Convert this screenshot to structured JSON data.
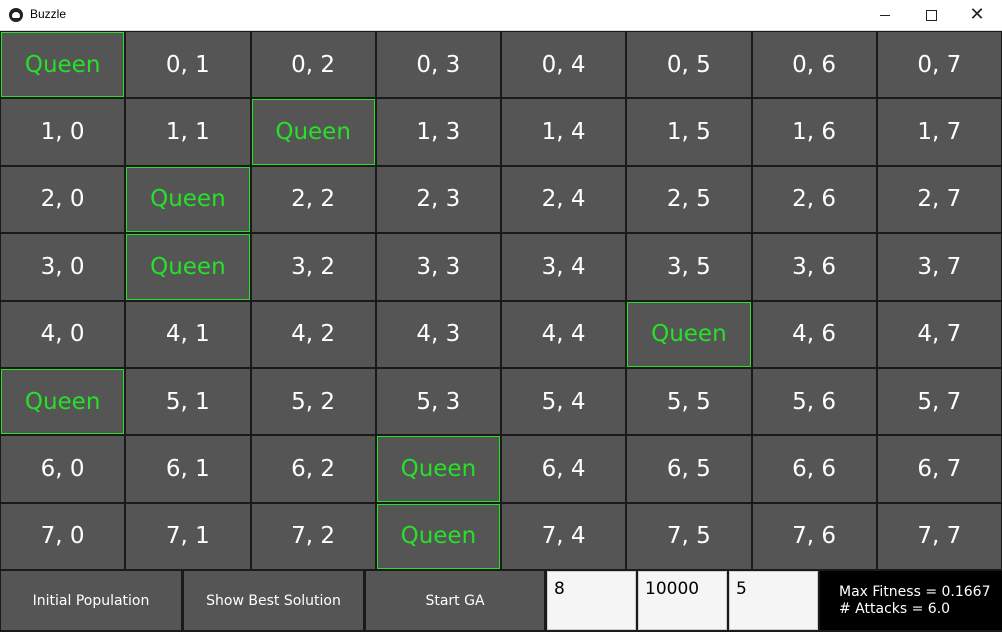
{
  "window": {
    "title": "Buzzle",
    "minimize_symbol": "",
    "close_symbol": "✕"
  },
  "board": {
    "queen_color": "#27e028",
    "cell_color": "#555555",
    "rows": [
      [
        "Queen",
        "0, 1",
        "0, 2",
        "0, 3",
        "0, 4",
        "0, 5",
        "0, 6",
        "0, 7"
      ],
      [
        "1, 0",
        "1, 1",
        "Queen",
        "1, 3",
        "1, 4",
        "1, 5",
        "1, 6",
        "1, 7"
      ],
      [
        "2, 0",
        "Queen",
        "2, 2",
        "2, 3",
        "2, 4",
        "2, 5",
        "2, 6",
        "2, 7"
      ],
      [
        "3, 0",
        "Queen",
        "3, 2",
        "3, 3",
        "3, 4",
        "3, 5",
        "3, 6",
        "3, 7"
      ],
      [
        "4, 0",
        "4, 1",
        "4, 2",
        "4, 3",
        "4, 4",
        "Queen",
        "4, 6",
        "4, 7"
      ],
      [
        "Queen",
        "5, 1",
        "5, 2",
        "5, 3",
        "5, 4",
        "5, 5",
        "5, 6",
        "5, 7"
      ],
      [
        "6, 0",
        "6, 1",
        "6, 2",
        "Queen",
        "6, 4",
        "6, 5",
        "6, 6",
        "6, 7"
      ],
      [
        "7, 0",
        "7, 1",
        "7, 2",
        "Queen",
        "7, 4",
        "7, 5",
        "7, 6",
        "7, 7"
      ]
    ]
  },
  "controls": {
    "initial_population_label": "Initial Population",
    "show_best_label": "Show Best Solution",
    "start_ga_label": "Start GA",
    "field_1_value": "8",
    "field_2_value": "10000",
    "field_3_value": "5",
    "max_fitness_text": "Max Fitness = 0.1667",
    "attacks_text": "# Attacks = 6.0"
  }
}
